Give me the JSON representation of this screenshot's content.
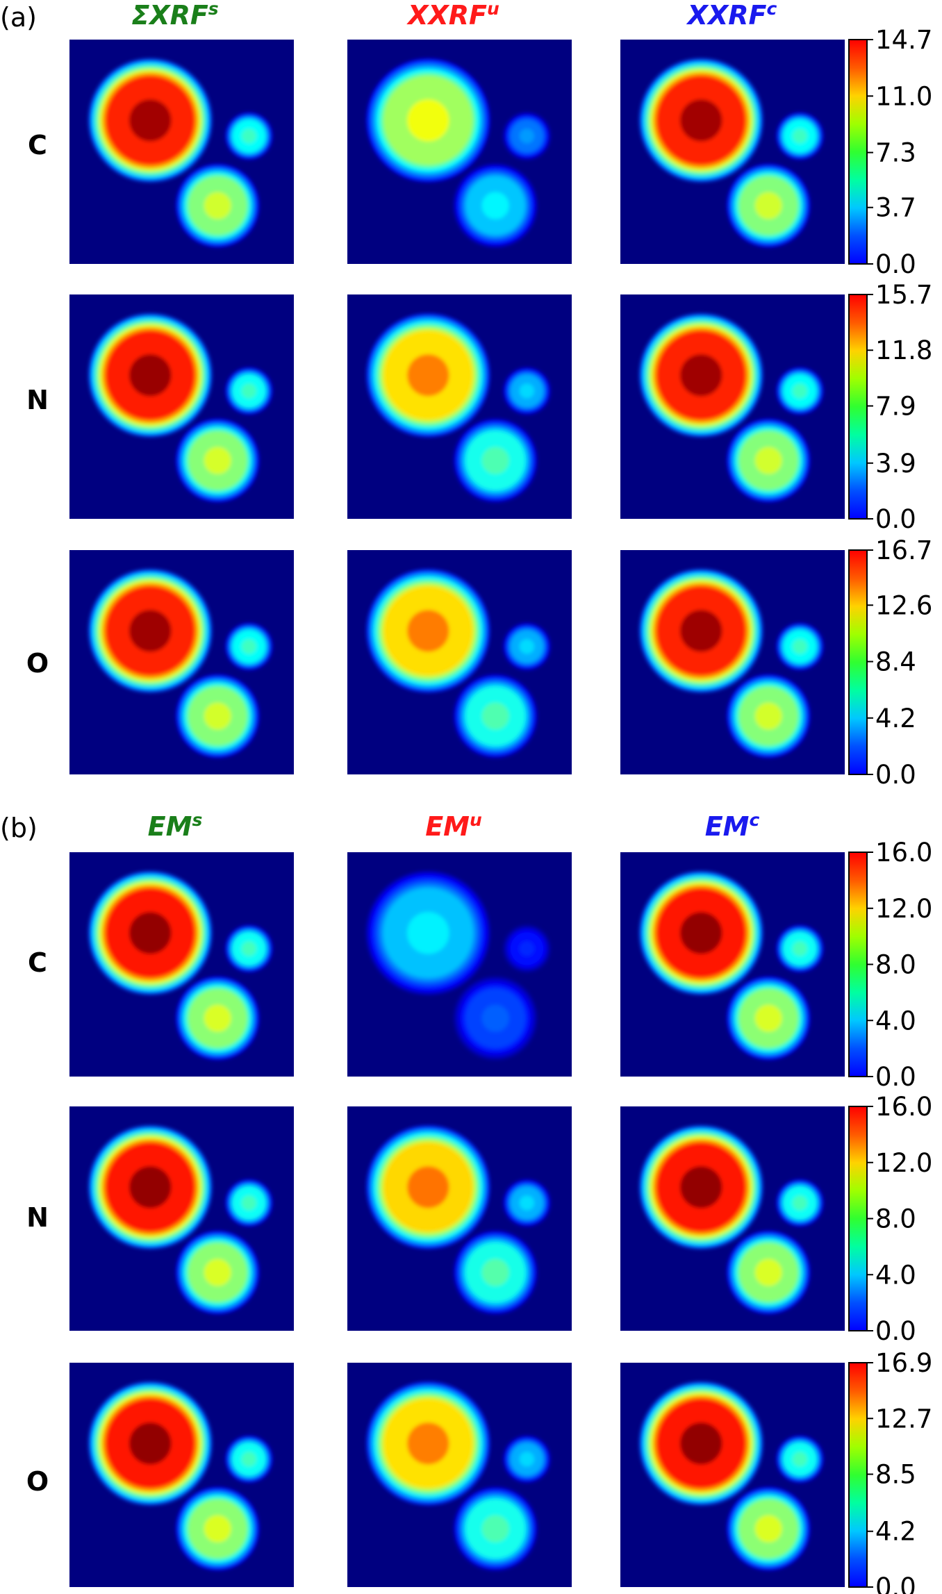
{
  "chart_data": [
    {
      "type": "heatmap",
      "panel": "a",
      "panel_label": "(a)",
      "columns": [
        {
          "prefix": "ΣXRF",
          "sup": "s",
          "color": "#1a7f1a"
        },
        {
          "prefix": "XXRF",
          "sup": "u",
          "color": "#ff1a1a"
        },
        {
          "prefix": "XXRF",
          "sup": "c",
          "color": "#1a1aee"
        }
      ],
      "rows": [
        {
          "label": "C",
          "cmax": 14.7,
          "ticks": [
            "0.0",
            "3.7",
            "7.3",
            "11.0",
            "14.7"
          ],
          "peaks": [
            14.2,
            9.0,
            14.2
          ]
        },
        {
          "label": "N",
          "cmax": 15.7,
          "ticks": [
            "0.0",
            "3.9",
            "7.9",
            "11.8",
            "15.7"
          ],
          "peaks": [
            15.3,
            11.8,
            15.2
          ]
        },
        {
          "label": "O",
          "cmax": 16.7,
          "ticks": [
            "0.0",
            "4.2",
            "8.4",
            "12.6",
            "16.7"
          ],
          "peaks": [
            16.2,
            12.6,
            16.2
          ]
        }
      ]
    },
    {
      "type": "heatmap",
      "panel": "b",
      "panel_label": "(b)",
      "columns": [
        {
          "prefix": "EM",
          "sup": "s",
          "color": "#1a7f1a"
        },
        {
          "prefix": "EM",
          "sup": "u",
          "color": "#ff1a1a"
        },
        {
          "prefix": "EM",
          "sup": "c",
          "color": "#1a1aee"
        }
      ],
      "rows": [
        {
          "label": "C",
          "cmax": 16.0,
          "ticks": [
            "0.0",
            "4.0",
            "8.0",
            "12.0",
            "16.0"
          ],
          "peaks": [
            15.7,
            5.8,
            15.7
          ]
        },
        {
          "label": "N",
          "cmax": 16.0,
          "ticks": [
            "0.0",
            "4.0",
            "8.0",
            "12.0",
            "16.0"
          ],
          "peaks": [
            15.7,
            12.2,
            15.7
          ]
        },
        {
          "label": "O",
          "cmax": 16.9,
          "ticks": [
            "0.0",
            "4.2",
            "8.5",
            "12.7",
            "16.9"
          ],
          "peaks": [
            16.6,
            12.7,
            16.6
          ]
        }
      ]
    }
  ]
}
